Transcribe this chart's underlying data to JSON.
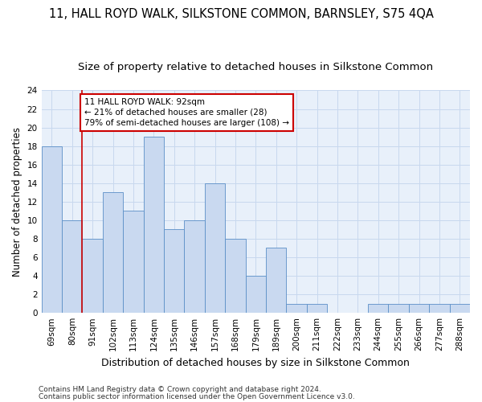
{
  "title": "11, HALL ROYD WALK, SILKSTONE COMMON, BARNSLEY, S75 4QA",
  "subtitle": "Size of property relative to detached houses in Silkstone Common",
  "xlabel": "Distribution of detached houses by size in Silkstone Common",
  "ylabel": "Number of detached properties",
  "footnote1": "Contains HM Land Registry data © Crown copyright and database right 2024.",
  "footnote2": "Contains public sector information licensed under the Open Government Licence v3.0.",
  "categories": [
    "69sqm",
    "80sqm",
    "91sqm",
    "102sqm",
    "113sqm",
    "124sqm",
    "135sqm",
    "146sqm",
    "157sqm",
    "168sqm",
    "179sqm",
    "189sqm",
    "200sqm",
    "211sqm",
    "222sqm",
    "233sqm",
    "244sqm",
    "255sqm",
    "266sqm",
    "277sqm",
    "288sqm"
  ],
  "values": [
    18,
    10,
    8,
    13,
    11,
    19,
    9,
    10,
    14,
    8,
    4,
    7,
    1,
    1,
    0,
    0,
    1,
    1,
    1,
    1,
    1
  ],
  "bar_color": "#c9d9f0",
  "bar_edge_color": "#5b8fc7",
  "property_line_color": "#cc0000",
  "annotation_text": "11 HALL ROYD WALK: 92sqm\n← 21% of detached houses are smaller (28)\n79% of semi-detached houses are larger (108) →",
  "annotation_box_color": "#cc0000",
  "ylim": [
    0,
    24
  ],
  "yticks": [
    0,
    2,
    4,
    6,
    8,
    10,
    12,
    14,
    16,
    18,
    20,
    22,
    24
  ],
  "grid_color": "#c8d8ee",
  "plot_bg_color": "#e8f0fa",
  "background_color": "#ffffff",
  "title_fontsize": 10.5,
  "subtitle_fontsize": 9.5,
  "ylabel_fontsize": 8.5,
  "xlabel_fontsize": 9,
  "tick_fontsize": 7.5,
  "footnote_fontsize": 6.5
}
